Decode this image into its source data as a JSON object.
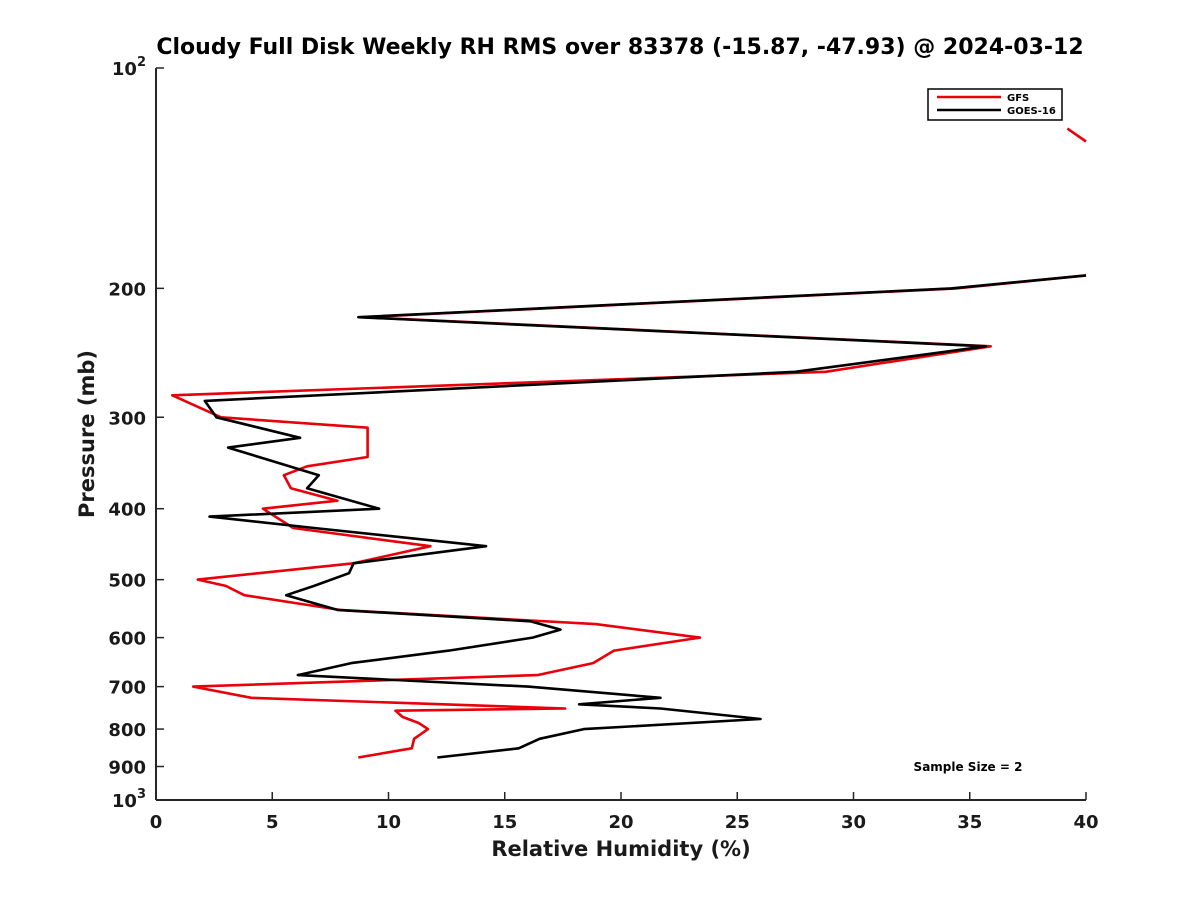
{
  "chart_data": {
    "type": "line",
    "title": "Cloudy Full Disk Weekly RH RMS over 83378 (-15.87, -47.93) @ 2024-03-12",
    "xlabel": "Relative Humidity (%)",
    "ylabel": "Pressure (mb)",
    "xlim": [
      0,
      40
    ],
    "ylim": [
      1000,
      100
    ],
    "yscale": "log",
    "grid": false,
    "legend_position": "top-right",
    "annotation": "Sample Size = 2",
    "x_ticks": [
      {
        "value": 0,
        "label": "0"
      },
      {
        "value": 5,
        "label": "5"
      },
      {
        "value": 10,
        "label": "10"
      },
      {
        "value": 15,
        "label": "15"
      },
      {
        "value": 20,
        "label": "20"
      },
      {
        "value": 25,
        "label": "25"
      },
      {
        "value": 30,
        "label": "30"
      },
      {
        "value": 35,
        "label": "35"
      },
      {
        "value": 40,
        "label": "40"
      }
    ],
    "y_ticks": [
      {
        "value": 100,
        "base": "10",
        "exp": "2"
      },
      {
        "value": 200,
        "label": "200"
      },
      {
        "value": 300,
        "label": "300"
      },
      {
        "value": 400,
        "label": "400"
      },
      {
        "value": 500,
        "label": "500"
      },
      {
        "value": 600,
        "label": "600"
      },
      {
        "value": 700,
        "label": "700"
      },
      {
        "value": 800,
        "label": "800"
      },
      {
        "value": 900,
        "label": "900"
      },
      {
        "value": 1000,
        "base": "10",
        "exp": "3"
      }
    ],
    "series": [
      {
        "name": "GFS",
        "color": "#e8000b",
        "points": [
          [
            8.7,
            875
          ],
          [
            11.0,
            850
          ],
          [
            11.1,
            825
          ],
          [
            11.7,
            800
          ],
          [
            11.3,
            785
          ],
          [
            10.6,
            770
          ],
          [
            10.3,
            755
          ],
          [
            17.6,
            750
          ],
          [
            4.1,
            725
          ],
          [
            1.6,
            700
          ],
          [
            16.4,
            675
          ],
          [
            18.8,
            650
          ],
          [
            19.7,
            625
          ],
          [
            23.4,
            600
          ],
          [
            18.9,
            575
          ],
          [
            7.9,
            550
          ],
          [
            3.8,
            525
          ],
          [
            3.0,
            510
          ],
          [
            1.8,
            500
          ],
          [
            8.5,
            475
          ],
          [
            11.8,
            450
          ],
          [
            5.9,
            425
          ],
          [
            4.6,
            400
          ],
          [
            7.8,
            390
          ],
          [
            5.8,
            375
          ],
          [
            5.5,
            360
          ],
          [
            6.5,
            350
          ],
          [
            9.1,
            340
          ],
          [
            9.1,
            310
          ],
          [
            2.8,
            300
          ],
          [
            0.7,
            280
          ],
          [
            28.8,
            260
          ],
          [
            35.9,
            240
          ],
          [
            8.9,
            219
          ],
          [
            34.4,
            200
          ],
          [
            40.0,
            192
          ]
        ],
        "points_top": [
          [
            40.0,
            126
          ],
          [
            39.2,
            121
          ]
        ]
      },
      {
        "name": "GOES-16",
        "color": "#000000",
        "points": [
          [
            12.1,
            875
          ],
          [
            15.6,
            850
          ],
          [
            16.5,
            825
          ],
          [
            18.4,
            800
          ],
          [
            26.0,
            775
          ],
          [
            21.7,
            750
          ],
          [
            18.2,
            740
          ],
          [
            21.7,
            725
          ],
          [
            16.0,
            700
          ],
          [
            6.1,
            675
          ],
          [
            8.4,
            650
          ],
          [
            12.6,
            625
          ],
          [
            16.2,
            600
          ],
          [
            17.4,
            585
          ],
          [
            16.1,
            570
          ],
          [
            7.8,
            550
          ],
          [
            5.6,
            525
          ],
          [
            6.8,
            510
          ],
          [
            8.3,
            490
          ],
          [
            8.5,
            475
          ],
          [
            14.2,
            450
          ],
          [
            6.8,
            425
          ],
          [
            2.3,
            410
          ],
          [
            9.6,
            400
          ],
          [
            6.5,
            375
          ],
          [
            7.0,
            360
          ],
          [
            3.1,
            330
          ],
          [
            6.2,
            320
          ],
          [
            2.6,
            300
          ],
          [
            2.1,
            285
          ],
          [
            27.5,
            260
          ],
          [
            35.7,
            240
          ],
          [
            8.7,
            219
          ],
          [
            34.2,
            200
          ],
          [
            40.0,
            192
          ]
        ]
      }
    ]
  }
}
